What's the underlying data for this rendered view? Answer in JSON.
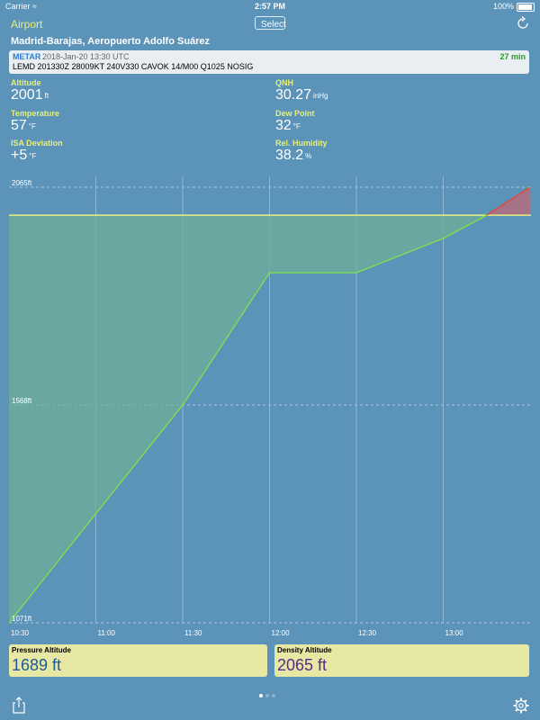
{
  "status": {
    "carrier": "Carrier",
    "time": "2:57 PM",
    "battery": "100%"
  },
  "nav": {
    "back_label": "Airport",
    "select_label": "Select"
  },
  "airport": {
    "name": "Madrid-Barajas, Aeropuerto Adolfo Suárez"
  },
  "metar": {
    "tag": "METAR",
    "time": "2018-Jan-20 13:30 UTC",
    "age": "27 min",
    "raw": "LEMD 201330Z 28009KT 240V330 CAVOK 14/M00 Q1025 NOSIG"
  },
  "fields": {
    "altitude": {
      "label": "Altitude",
      "value": "2001",
      "unit": "ft"
    },
    "qnh": {
      "label": "QNH",
      "value": "30.27",
      "unit": "inHg"
    },
    "temperature": {
      "label": "Temperature",
      "value": "57",
      "unit": "°F"
    },
    "dew_point": {
      "label": "Dew Point",
      "value": "32",
      "unit": "°F"
    },
    "isa_deviation": {
      "label": "ISA Deviation",
      "value": "+5",
      "unit": "°F"
    },
    "rel_humidity": {
      "label": "Rel. Humidity",
      "value": "38.2",
      "unit": "%"
    }
  },
  "chart_data": {
    "type": "area",
    "x_tick_labels": [
      "10:30",
      "11:00",
      "11:30",
      "12:00",
      "12:30",
      "13:00"
    ],
    "x": [
      "10:30",
      "11:00",
      "11:30",
      "12:00",
      "12:30",
      "13:00",
      "13:15",
      "13:30"
    ],
    "density_altitude_ft": [
      1071,
      1320,
      1568,
      1870,
      1870,
      1948,
      2001,
      2065
    ],
    "reference_altitude_ft": 2001,
    "y_tick_labels": [
      "2065ft",
      "1568ft",
      "1071ft"
    ],
    "ylim": [
      1071,
      2065
    ],
    "colors": {
      "above_fill": "#b86a7a",
      "below_fill": "#6fad9a",
      "line": "#7ed957",
      "reference": "#e6f07d",
      "above_line": "#e04a3a"
    }
  },
  "results": {
    "pressure_altitude": {
      "label": "Pressure Altitude",
      "value": "1689 ft",
      "color": "#1e5a99"
    },
    "density_altitude": {
      "label": "Density Altitude",
      "value": "2065 ft",
      "color": "#5a2a8a"
    }
  }
}
